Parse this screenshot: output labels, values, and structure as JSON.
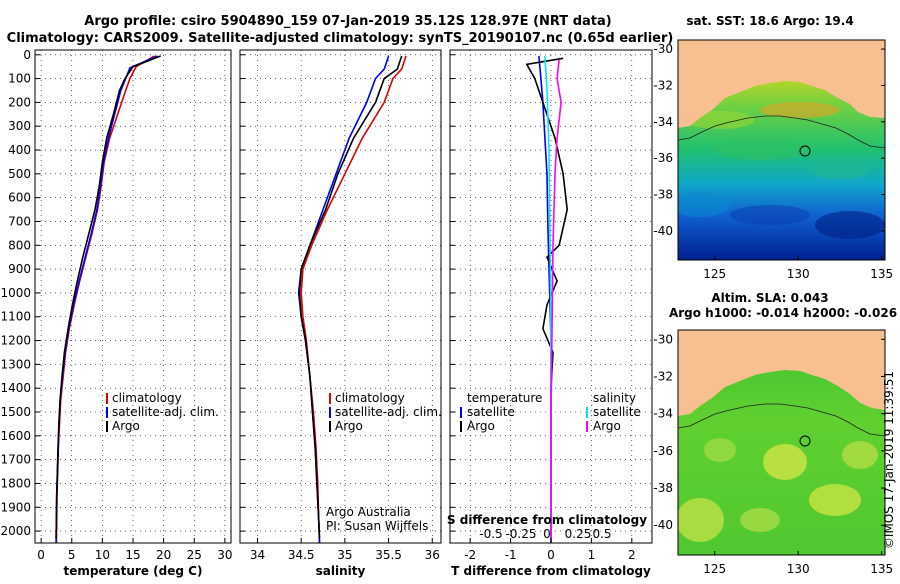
{
  "header": {
    "title_line1": "Argo profile: csiro 5904890_159 07-Jan-2019 35.12S 128.97E (NRT data)",
    "title_line2": "Climatology: CARS2009. Satellite-adjusted climatology: synTS_20190107.nc (0.65d earlier)"
  },
  "side_stamp": "©IMOS 17-Jan-2019 11:39:51",
  "colors": {
    "climatology": "#e00000",
    "satellite": "#0000ff",
    "argo": "#000000",
    "sat_salinity": "#00e5ff",
    "argo_salinity": "#ff00ff",
    "land": "#f8c090"
  },
  "chart_data": [
    {
      "type": "line",
      "panel": "temperature",
      "xlabel": "temperature (deg C)",
      "ylabel": "",
      "xlim": [
        -1,
        31
      ],
      "ylim": [
        2050,
        -20
      ],
      "xticks": [
        0,
        5,
        10,
        15,
        20,
        25,
        30
      ],
      "yticks": [
        0,
        100,
        200,
        300,
        400,
        500,
        600,
        700,
        800,
        900,
        1000,
        1100,
        1200,
        1300,
        1400,
        1500,
        1600,
        1700,
        1800,
        1900,
        2000
      ],
      "grid": true,
      "legend": [
        "climatology",
        "satellite-adj. clim.",
        "Argo"
      ],
      "series": [
        {
          "name": "climatology",
          "color": "#e00000",
          "points": [
            [
              18.5,
              5
            ],
            [
              15.5,
              50
            ],
            [
              14.5,
              100
            ],
            [
              13.8,
              150
            ],
            [
              12.5,
              250
            ],
            [
              11.2,
              350
            ],
            [
              10.3,
              450
            ],
            [
              9.8,
              550
            ],
            [
              9.2,
              650
            ],
            [
              8.3,
              750
            ],
            [
              7.3,
              850
            ],
            [
              6.3,
              950
            ],
            [
              5.4,
              1050
            ],
            [
              4.6,
              1150
            ],
            [
              4.0,
              1250
            ],
            [
              3.6,
              1350
            ],
            [
              3.2,
              1450
            ],
            [
              3.0,
              1550
            ],
            [
              2.8,
              1650
            ],
            [
              2.7,
              1750
            ],
            [
              2.6,
              1850
            ],
            [
              2.55,
              1950
            ],
            [
              2.5,
              2050
            ]
          ]
        },
        {
          "name": "satellite-adj. clim.",
          "color": "#0000ff",
          "points": [
            [
              19.0,
              5
            ],
            [
              14.5,
              55
            ],
            [
              13.8,
              100
            ],
            [
              13.0,
              150
            ],
            [
              12.0,
              250
            ],
            [
              11.0,
              350
            ],
            [
              10.2,
              450
            ],
            [
              9.7,
              550
            ],
            [
              9.1,
              650
            ],
            [
              8.2,
              750
            ],
            [
              7.2,
              850
            ],
            [
              6.2,
              950
            ],
            [
              5.3,
              1050
            ],
            [
              4.5,
              1150
            ],
            [
              3.9,
              1250
            ],
            [
              3.5,
              1350
            ],
            [
              3.1,
              1450
            ],
            [
              2.9,
              1550
            ],
            [
              2.8,
              1650
            ],
            [
              2.65,
              1750
            ],
            [
              2.55,
              1850
            ],
            [
              2.5,
              1950
            ],
            [
              2.45,
              2050
            ]
          ]
        },
        {
          "name": "Argo",
          "color": "#000000",
          "points": [
            [
              19.5,
              5
            ],
            [
              15.0,
              50
            ],
            [
              13.7,
              100
            ],
            [
              12.8,
              150
            ],
            [
              11.8,
              250
            ],
            [
              10.7,
              350
            ],
            [
              10.0,
              450
            ],
            [
              9.5,
              550
            ],
            [
              8.8,
              650
            ],
            [
              7.8,
              750
            ],
            [
              6.8,
              850
            ],
            [
              5.9,
              950
            ],
            [
              5.1,
              1050
            ],
            [
              4.4,
              1150
            ],
            [
              3.8,
              1250
            ],
            [
              3.4,
              1350
            ],
            [
              3.1,
              1450
            ],
            [
              2.9,
              1550
            ],
            [
              2.75,
              1650
            ],
            [
              2.65,
              1750
            ],
            [
              2.55,
              1850
            ],
            [
              2.5,
              1950
            ],
            [
              2.45,
              2030
            ]
          ]
        }
      ]
    },
    {
      "type": "line",
      "panel": "salinity",
      "xlabel": "salinity",
      "xlim": [
        33.8,
        36.1
      ],
      "ylim": [
        2050,
        -20
      ],
      "xticks": [
        34,
        34.5,
        35,
        35.5,
        36
      ],
      "xtick_labels": [
        "34",
        "34.5",
        "35",
        "35.5",
        "36"
      ],
      "grid": true,
      "legend": [
        "climatology",
        "satellite-adj. clim.",
        "Argo"
      ],
      "annotation": [
        "Argo Australia",
        "PI: Susan Wijffels"
      ],
      "series": [
        {
          "name": "climatology",
          "color": "#e00000",
          "points": [
            [
              35.7,
              5
            ],
            [
              35.65,
              60
            ],
            [
              35.55,
              100
            ],
            [
              35.45,
              200
            ],
            [
              35.2,
              350
            ],
            [
              35.0,
              500
            ],
            [
              34.8,
              650
            ],
            [
              34.62,
              800
            ],
            [
              34.52,
              900
            ],
            [
              34.5,
              1000
            ],
            [
              34.52,
              1100
            ],
            [
              34.56,
              1200
            ],
            [
              34.6,
              1350
            ],
            [
              34.64,
              1500
            ],
            [
              34.67,
              1650
            ],
            [
              34.69,
              1800
            ],
            [
              34.7,
              1950
            ],
            [
              34.71,
              2050
            ]
          ]
        },
        {
          "name": "satellite-adj. clim.",
          "color": "#0000ff",
          "points": [
            [
              35.5,
              5
            ],
            [
              35.45,
              60
            ],
            [
              35.35,
              100
            ],
            [
              35.25,
              200
            ],
            [
              35.05,
              350
            ],
            [
              34.9,
              500
            ],
            [
              34.75,
              650
            ],
            [
              34.6,
              800
            ],
            [
              34.5,
              900
            ],
            [
              34.47,
              1000
            ],
            [
              34.5,
              1100
            ],
            [
              34.55,
              1200
            ],
            [
              34.6,
              1350
            ],
            [
              34.63,
              1500
            ],
            [
              34.66,
              1650
            ],
            [
              34.68,
              1800
            ],
            [
              34.7,
              1950
            ],
            [
              34.71,
              2050
            ]
          ]
        },
        {
          "name": "Argo",
          "color": "#000000",
          "points": [
            [
              35.65,
              5
            ],
            [
              35.6,
              60
            ],
            [
              35.45,
              100
            ],
            [
              35.35,
              200
            ],
            [
              35.1,
              350
            ],
            [
              34.92,
              500
            ],
            [
              34.78,
              650
            ],
            [
              34.6,
              800
            ],
            [
              34.5,
              900
            ],
            [
              34.48,
              1000
            ],
            [
              34.5,
              1100
            ],
            [
              34.55,
              1200
            ],
            [
              34.6,
              1350
            ],
            [
              34.63,
              1500
            ],
            [
              34.66,
              1650
            ],
            [
              34.68,
              1800
            ],
            [
              34.7,
              1950
            ],
            [
              34.71,
              2030
            ]
          ]
        }
      ]
    },
    {
      "type": "line",
      "panel": "difference",
      "xlabel": "T difference from climatology",
      "xlim": [
        -2.5,
        2.5
      ],
      "ylim": [
        2050,
        -20
      ],
      "xticks": [
        -2,
        -1,
        0,
        1,
        2
      ],
      "s_axis_title": "S difference from climatology",
      "s_ticks": [
        "-0.5",
        "-0.25",
        "0",
        "0.25",
        "0.5"
      ],
      "grid": true,
      "legend_temperature": [
        "temperature",
        "satellite",
        "Argo"
      ],
      "legend_salinity": [
        "salinity",
        "satellite",
        "Argo"
      ],
      "series": [
        {
          "name": "satellite",
          "color": "#0000ff",
          "points": [
            [
              -0.3,
              5
            ],
            [
              -0.25,
              100
            ],
            [
              -0.2,
              200
            ],
            [
              -0.15,
              350
            ],
            [
              -0.1,
              500
            ],
            [
              -0.08,
              700
            ],
            [
              -0.05,
              900
            ],
            [
              0.0,
              1200
            ],
            [
              0.0,
              1500
            ],
            [
              0.0,
              1800
            ],
            [
              0.0,
              2050
            ]
          ]
        },
        {
          "name": "Argo",
          "color": "#000000",
          "points": [
            [
              0.3,
              15
            ],
            [
              -0.6,
              40
            ],
            [
              -0.4,
              100
            ],
            [
              -0.2,
              200
            ],
            [
              0.1,
              350
            ],
            [
              0.3,
              500
            ],
            [
              0.4,
              650
            ],
            [
              0.2,
              800
            ],
            [
              -0.1,
              850
            ],
            [
              0.15,
              950
            ],
            [
              -0.1,
              1050
            ],
            [
              -0.2,
              1150
            ],
            [
              0.05,
              1250
            ],
            [
              0.0,
              1400
            ],
            [
              0.0,
              2050
            ]
          ]
        },
        {
          "name": "salinity satellite",
          "color": "#00e5ff",
          "points": [
            [
              -0.15,
              5
            ],
            [
              -0.1,
              150
            ],
            [
              -0.05,
              400
            ],
            [
              -0.03,
              700
            ],
            [
              -0.01,
              1000
            ],
            [
              0.0,
              1400
            ],
            [
              0.0,
              2050
            ]
          ]
        },
        {
          "name": "salinity Argo",
          "color": "#ff00ff",
          "points": [
            [
              0.2,
              20
            ],
            [
              0.15,
              100
            ],
            [
              0.25,
              200
            ],
            [
              0.15,
              350
            ],
            [
              0.1,
              500
            ],
            [
              0.05,
              800
            ],
            [
              0.03,
              1100
            ],
            [
              0.0,
              1500
            ],
            [
              0.0,
              2050
            ]
          ]
        }
      ]
    },
    {
      "type": "heatmap",
      "panel": "map-sst",
      "title": "sat. SST: 18.6 Argo: 19.4",
      "xlim": [
        122.8,
        135.2
      ],
      "ylim": [
        -41.6,
        -29.5
      ],
      "xticks": [
        125,
        130,
        135
      ],
      "yticks": [
        -30,
        -32,
        -34,
        -36,
        -38,
        -40
      ],
      "argo_position": [
        128.97,
        -35.12
      ]
    },
    {
      "type": "heatmap",
      "panel": "map-sla",
      "title_line1": "Altim. SLA: 0.043",
      "title_line2": "Argo h1000: -0.014 h2000: -0.026",
      "xlim": [
        122.8,
        135.2
      ],
      "ylim": [
        -41.6,
        -29.5
      ],
      "xticks": [
        125,
        130,
        135
      ],
      "yticks": [
        -30,
        -32,
        -34,
        -36,
        -38,
        -40
      ],
      "argo_position": [
        128.97,
        -35.12
      ]
    }
  ]
}
